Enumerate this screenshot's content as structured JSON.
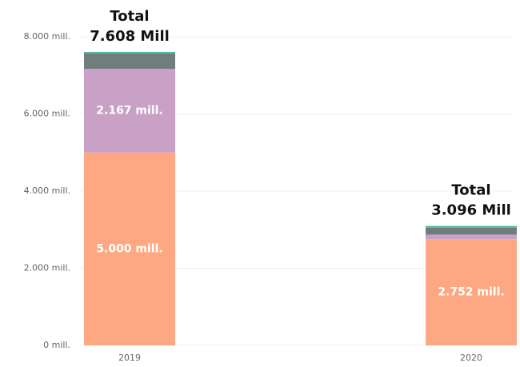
{
  "chart_data": {
    "type": "stacked_bar",
    "categories": [
      "2019",
      "2020"
    ],
    "series": [
      {
        "color": "#fda882",
        "values": [
          5000,
          2752
        ],
        "value_labels": [
          "5.000 mill.",
          "2.752 mill."
        ]
      },
      {
        "color": "#c9a0c6",
        "values": [
          2167,
          120
        ],
        "value_labels": [
          "2.167 mill.",
          null
        ]
      },
      {
        "color": "#717c7c",
        "values": [
          401,
          180
        ]
      },
      {
        "color": "#4fb3a5",
        "values": [
          40,
          44
        ]
      }
    ],
    "total_title": "Total",
    "totals": [
      7608,
      3096
    ],
    "total_labels": [
      "7.608 Mill",
      "3.096 Mill"
    ],
    "ylim": [
      0,
      8000
    ],
    "yticks": [
      {
        "value": 0,
        "label": "0 mill."
      },
      {
        "value": 2000,
        "label": "2.000 mill."
      },
      {
        "value": 4000,
        "label": "4.000 mill."
      },
      {
        "value": 6000,
        "label": "6.000 mill."
      },
      {
        "value": 8000,
        "label": "8.000 mill."
      }
    ],
    "grid": true
  }
}
